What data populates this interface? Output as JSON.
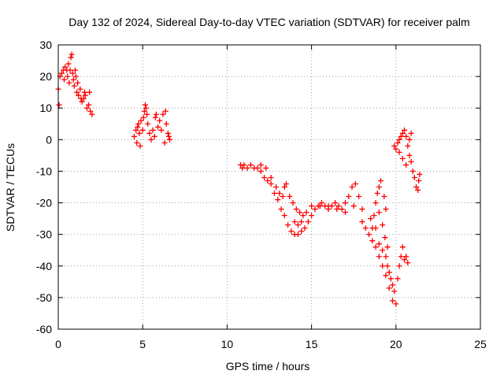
{
  "chart_data": {
    "type": "scatter",
    "title": "Day 132 of 2024, Sidereal Day-to-day VTEC variation (SDTVAR) for receiver palm",
    "xlabel": "GPS time / hours",
    "ylabel": "SDTVAR / TECUs",
    "xlim": [
      0,
      25
    ],
    "ylim": [
      -60,
      30
    ],
    "xticks": [
      0,
      5,
      10,
      15,
      20,
      25
    ],
    "yticks": [
      -60,
      -50,
      -40,
      -30,
      -20,
      -10,
      0,
      10,
      20,
      30
    ],
    "grid": true,
    "marker": "+",
    "color": "#ff0000",
    "series": [
      {
        "name": "SDTVAR",
        "points": [
          [
            0.0,
            16
          ],
          [
            0.05,
            11
          ],
          [
            0.1,
            20
          ],
          [
            0.2,
            21
          ],
          [
            0.3,
            22
          ],
          [
            0.35,
            19
          ],
          [
            0.4,
            23
          ],
          [
            0.5,
            22
          ],
          [
            0.55,
            20
          ],
          [
            0.6,
            24
          ],
          [
            0.65,
            18
          ],
          [
            0.7,
            22
          ],
          [
            0.75,
            26
          ],
          [
            0.8,
            27
          ],
          [
            0.85,
            21
          ],
          [
            0.9,
            19
          ],
          [
            0.95,
            17
          ],
          [
            1.0,
            22
          ],
          [
            1.05,
            20
          ],
          [
            1.1,
            15
          ],
          [
            1.15,
            18
          ],
          [
            1.2,
            14
          ],
          [
            1.3,
            16
          ],
          [
            1.35,
            13
          ],
          [
            1.4,
            12
          ],
          [
            1.5,
            13
          ],
          [
            1.55,
            15
          ],
          [
            1.6,
            14
          ],
          [
            1.7,
            10
          ],
          [
            1.8,
            11
          ],
          [
            1.85,
            15
          ],
          [
            1.9,
            9
          ],
          [
            2.0,
            8
          ],
          [
            4.5,
            1
          ],
          [
            4.6,
            3
          ],
          [
            4.65,
            -1
          ],
          [
            4.7,
            4
          ],
          [
            4.75,
            5
          ],
          [
            4.8,
            2
          ],
          [
            4.85,
            -2
          ],
          [
            4.9,
            6
          ],
          [
            5.0,
            3
          ],
          [
            5.05,
            7
          ],
          [
            5.1,
            9
          ],
          [
            5.15,
            11
          ],
          [
            5.2,
            10
          ],
          [
            5.25,
            8
          ],
          [
            5.3,
            5
          ],
          [
            5.4,
            2
          ],
          [
            5.5,
            0
          ],
          [
            5.6,
            3
          ],
          [
            5.7,
            1
          ],
          [
            5.75,
            7
          ],
          [
            5.8,
            8
          ],
          [
            5.9,
            4
          ],
          [
            6.0,
            6
          ],
          [
            6.1,
            3
          ],
          [
            6.2,
            8
          ],
          [
            6.3,
            -1
          ],
          [
            6.35,
            9
          ],
          [
            6.4,
            5
          ],
          [
            6.5,
            2
          ],
          [
            6.55,
            1
          ],
          [
            6.6,
            0
          ],
          [
            10.8,
            -8
          ],
          [
            10.9,
            -9
          ],
          [
            11.0,
            -8
          ],
          [
            11.2,
            -9
          ],
          [
            11.4,
            -8
          ],
          [
            11.6,
            -9
          ],
          [
            11.8,
            -9
          ],
          [
            12.0,
            -10
          ],
          [
            12.2,
            -12
          ],
          [
            12.4,
            -13
          ],
          [
            12.6,
            -14
          ],
          [
            12.8,
            -17
          ],
          [
            13.0,
            -19
          ],
          [
            13.2,
            -22
          ],
          [
            13.4,
            -24
          ],
          [
            13.6,
            -27
          ],
          [
            13.8,
            -29
          ],
          [
            14.0,
            -30
          ],
          [
            14.2,
            -30
          ],
          [
            14.4,
            -29
          ],
          [
            14.6,
            -28
          ],
          [
            14.8,
            -26
          ],
          [
            15.0,
            -24
          ],
          [
            15.2,
            -22
          ],
          [
            15.4,
            -21
          ],
          [
            15.6,
            -20
          ],
          [
            15.8,
            -21
          ],
          [
            16.0,
            -22
          ],
          [
            16.2,
            -21
          ],
          [
            16.4,
            -20
          ],
          [
            16.6,
            -21
          ],
          [
            16.8,
            -22
          ],
          [
            17.0,
            -20
          ],
          [
            17.2,
            -18
          ],
          [
            17.4,
            -15
          ],
          [
            17.6,
            -14
          ],
          [
            17.8,
            -18
          ],
          [
            18.0,
            -26
          ],
          [
            18.2,
            -28
          ],
          [
            18.4,
            -30
          ],
          [
            18.6,
            -32
          ],
          [
            18.8,
            -34
          ],
          [
            19.0,
            -37
          ],
          [
            19.2,
            -40
          ],
          [
            19.4,
            -43
          ],
          [
            19.6,
            -47
          ],
          [
            19.8,
            -51
          ],
          [
            20.0,
            -52
          ],
          [
            20.1,
            -44
          ],
          [
            20.2,
            -40
          ],
          [
            20.3,
            -37
          ],
          [
            20.4,
            -34
          ],
          [
            20.5,
            -38
          ],
          [
            20.6,
            -37
          ],
          [
            20.7,
            -39
          ],
          [
            12.0,
            -8
          ],
          [
            12.3,
            -9
          ],
          [
            12.6,
            -12
          ],
          [
            12.9,
            -15
          ],
          [
            13.1,
            -17
          ],
          [
            13.3,
            -18
          ],
          [
            13.4,
            -15
          ],
          [
            13.5,
            -14
          ],
          [
            13.7,
            -18
          ],
          [
            13.9,
            -20
          ],
          [
            14.1,
            -22
          ],
          [
            14.3,
            -23
          ],
          [
            14.5,
            -24
          ],
          [
            14.7,
            -23
          ],
          [
            15.0,
            -21
          ],
          [
            15.5,
            -21
          ],
          [
            16.0,
            -21
          ],
          [
            16.5,
            -22
          ],
          [
            17.0,
            -23
          ],
          [
            17.5,
            -21
          ],
          [
            18.0,
            -22
          ],
          [
            18.5,
            -25
          ],
          [
            18.8,
            -28
          ],
          [
            19.0,
            -33
          ],
          [
            19.2,
            -35
          ],
          [
            19.4,
            -37
          ],
          [
            19.5,
            -40
          ],
          [
            19.6,
            -42
          ],
          [
            19.7,
            -44
          ],
          [
            19.8,
            -46
          ],
          [
            19.9,
            -48
          ],
          [
            18.6,
            -28
          ],
          [
            18.7,
            -24
          ],
          [
            18.8,
            -20
          ],
          [
            18.9,
            -17
          ],
          [
            19.0,
            -15
          ],
          [
            19.1,
            -13
          ],
          [
            19.3,
            -18
          ],
          [
            19.4,
            -22
          ],
          [
            19.0,
            -23
          ],
          [
            19.2,
            -27
          ],
          [
            19.35,
            -31
          ],
          [
            19.5,
            -34
          ],
          [
            14.0,
            -26
          ],
          [
            14.2,
            -27
          ],
          [
            14.4,
            -26
          ],
          [
            19.9,
            -2
          ],
          [
            20.0,
            -3
          ],
          [
            20.1,
            -1
          ],
          [
            20.2,
            0
          ],
          [
            20.3,
            1
          ],
          [
            20.4,
            2
          ],
          [
            20.5,
            3
          ],
          [
            20.6,
            1
          ],
          [
            20.7,
            -2
          ],
          [
            20.8,
            -5
          ],
          [
            20.9,
            -7
          ],
          [
            21.0,
            -10
          ],
          [
            21.1,
            -12
          ],
          [
            21.2,
            -15
          ],
          [
            21.3,
            -16
          ],
          [
            21.35,
            -13
          ],
          [
            21.4,
            -11
          ],
          [
            20.2,
            -4
          ],
          [
            20.4,
            -6
          ],
          [
            20.6,
            -8
          ],
          [
            20.8,
            0
          ],
          [
            20.9,
            2
          ]
        ]
      }
    ]
  }
}
